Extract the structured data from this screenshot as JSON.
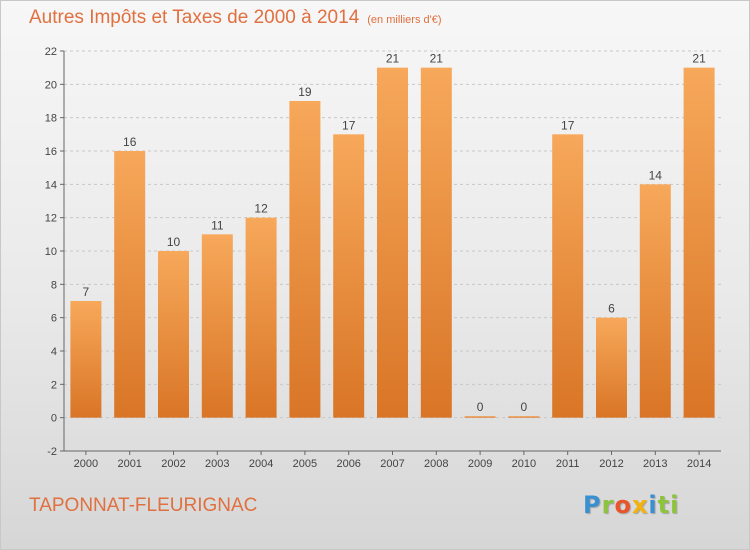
{
  "title": "Autres Impôts et Taxes de 2000 à 2014",
  "subtitle": "(en milliers d'€)",
  "footer": {
    "commune": "TAPONNAT-FLEURIGNAC",
    "logo_letters": [
      "P",
      "r",
      "o",
      "x",
      "i",
      "ti"
    ]
  },
  "colors": {
    "bar_top": "#f7a85a",
    "bar_bottom": "#d97526",
    "title": "#e0703f",
    "grid": "#c8c8c8"
  },
  "chart_data": {
    "type": "bar",
    "categories": [
      "2000",
      "2001",
      "2002",
      "2003",
      "2004",
      "2005",
      "2006",
      "2007",
      "2008",
      "2009",
      "2010",
      "2011",
      "2012",
      "2013",
      "2014"
    ],
    "values": [
      7,
      16,
      10,
      11,
      12,
      19,
      17,
      21,
      21,
      0,
      0,
      17,
      6,
      14,
      21
    ],
    "data_labels": [
      "7",
      "16",
      "10",
      "11",
      "12",
      "19",
      "17",
      "21",
      "21",
      "0",
      "0",
      "17",
      "6",
      "14",
      "21"
    ],
    "y_ticks": [
      -2,
      0,
      2,
      4,
      6,
      8,
      10,
      12,
      14,
      16,
      18,
      20,
      22
    ],
    "ylim": [
      -2,
      22
    ],
    "grid": true,
    "legend": "none"
  }
}
